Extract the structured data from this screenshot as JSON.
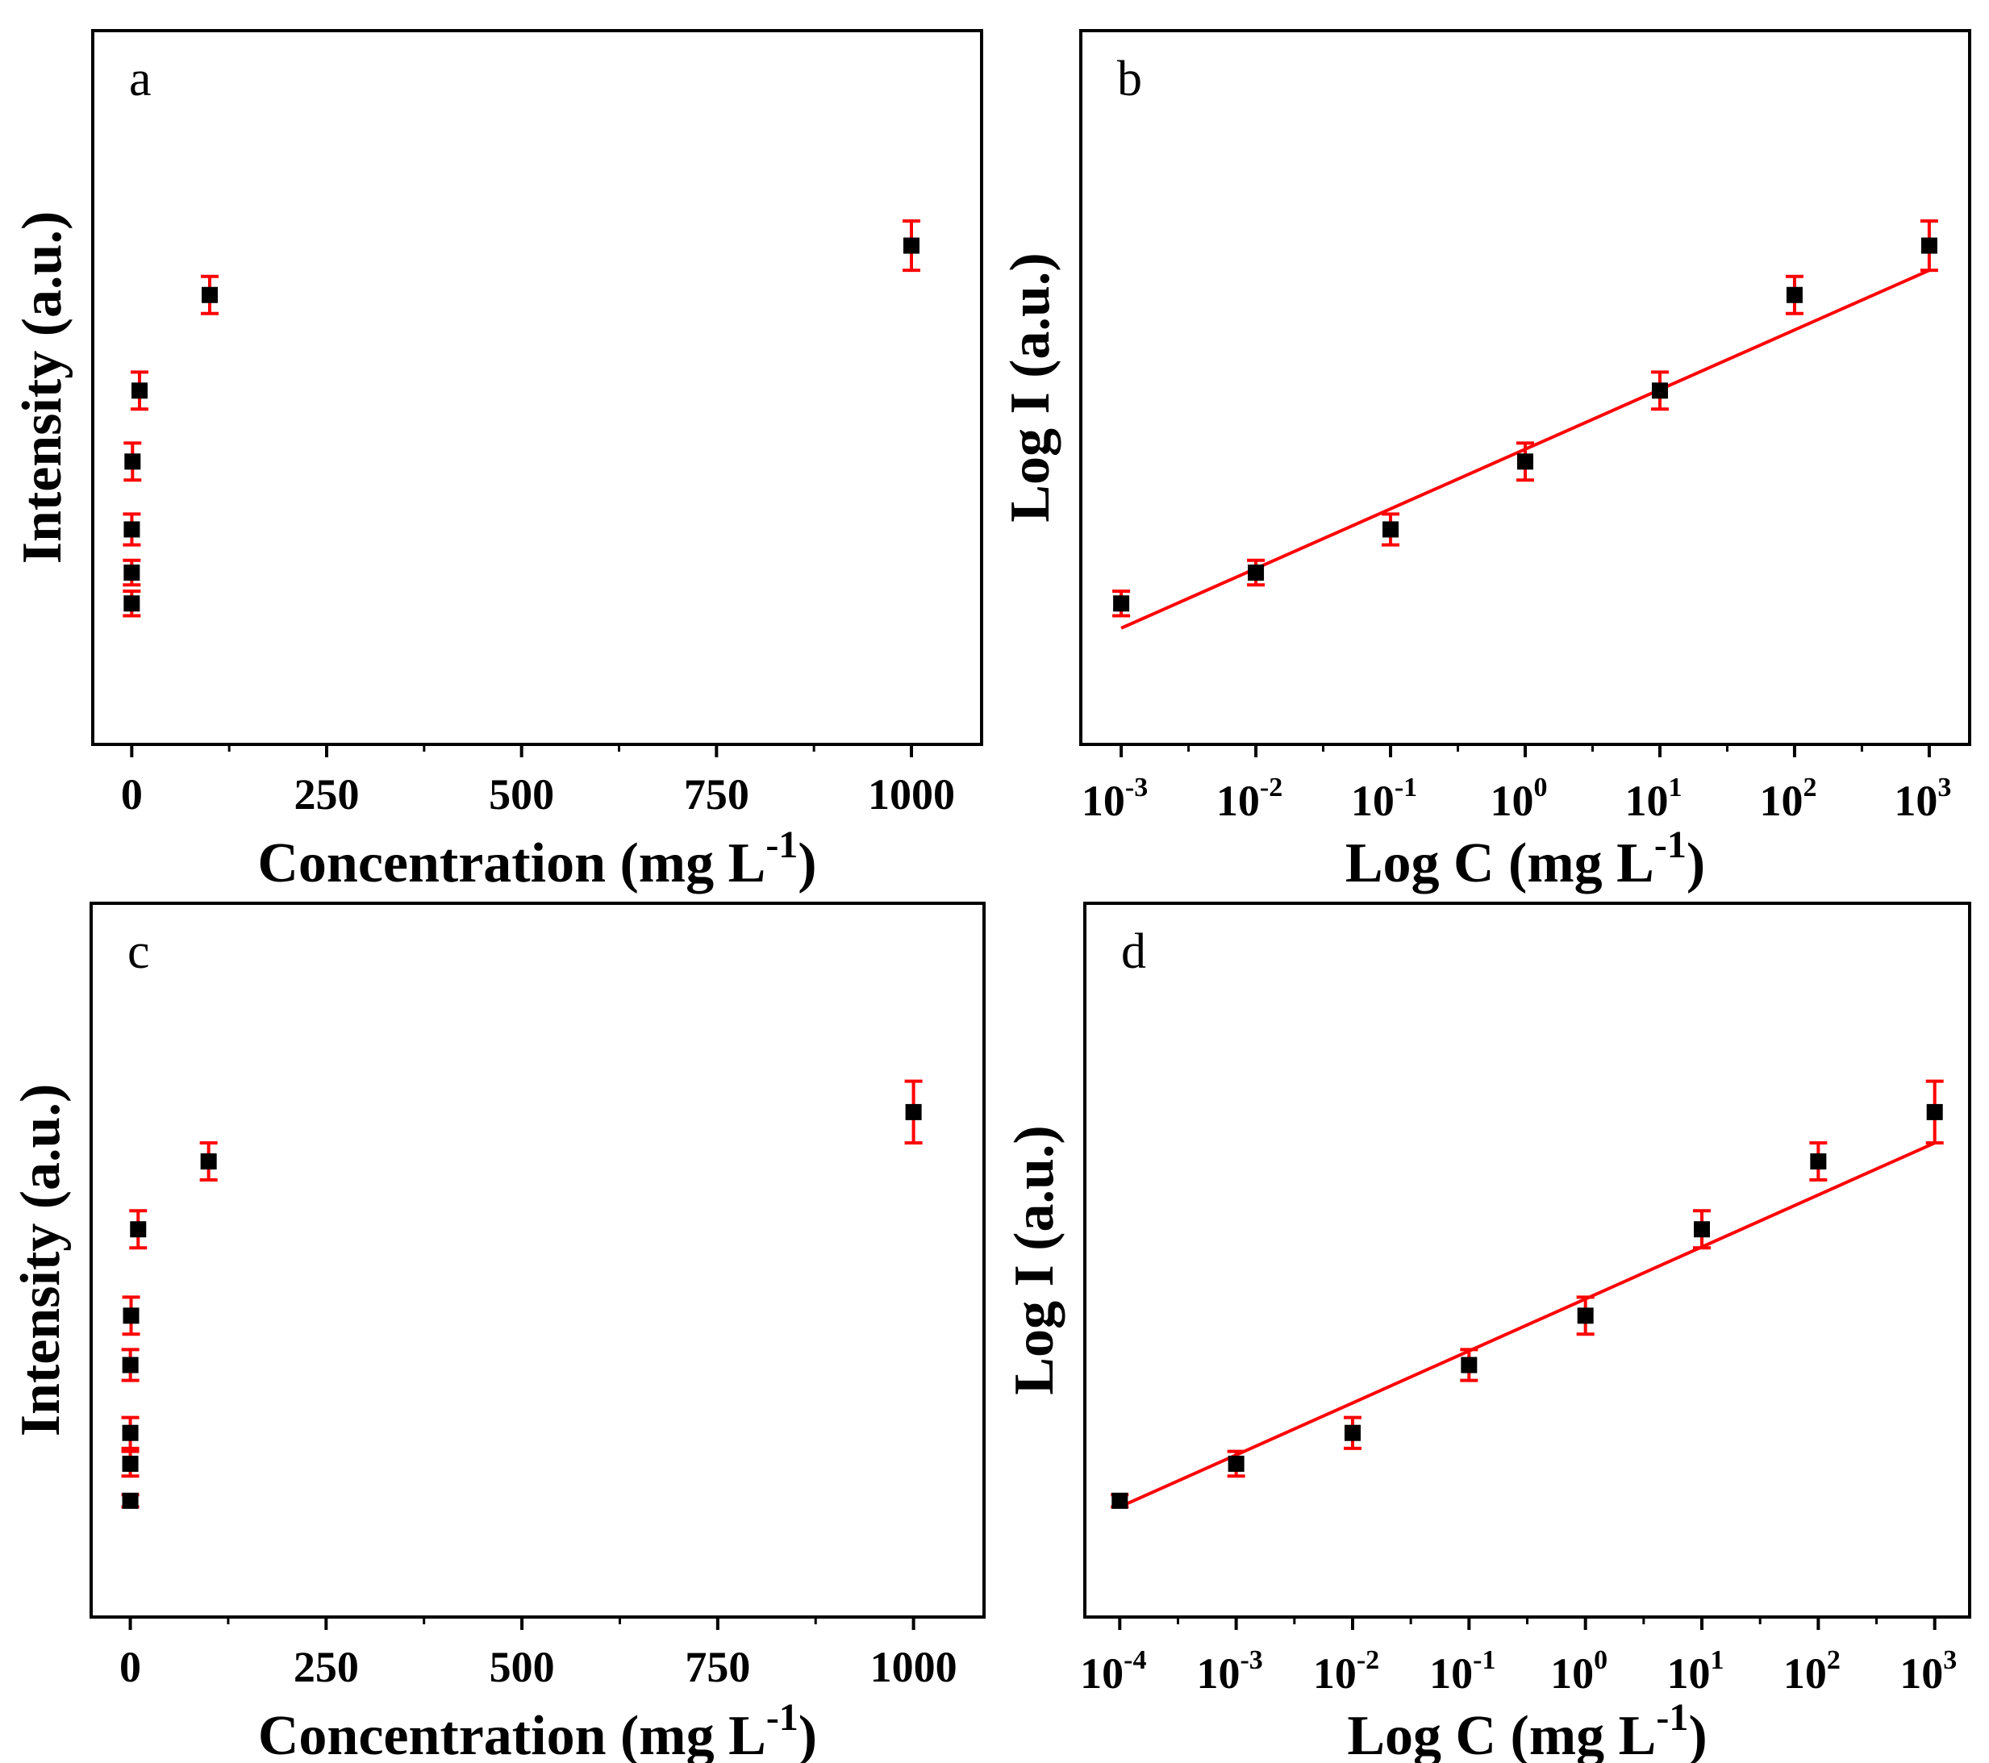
{
  "colors": {
    "point": "#000000",
    "error": "#ff0000",
    "fit": "#ff0000",
    "frame": "#000000"
  },
  "chart_data": [
    {
      "id": "a",
      "panel_label": "a",
      "type": "scatter",
      "scale": "linear",
      "xlabel": "Concentration (mg L",
      "xlabel_sup": "-1",
      "xlabel_close": ")",
      "ylabel": "Intensity (a.u.)",
      "xlim": [
        -50,
        1090
      ],
      "ylim": [
        0,
        100
      ],
      "xticks": [
        0,
        250,
        500,
        750,
        1000
      ],
      "xtick_labels": [
        "0",
        "250",
        "500",
        "750",
        "1000"
      ],
      "fit": false,
      "points": [
        {
          "x": 0.001,
          "y": 15,
          "err": 2
        },
        {
          "x": 0.01,
          "y": 20,
          "err": 2
        },
        {
          "x": 0.1,
          "y": 27,
          "err": 2.5
        },
        {
          "x": 1,
          "y": 38,
          "err": 3
        },
        {
          "x": 10,
          "y": 49.5,
          "err": 3
        },
        {
          "x": 100,
          "y": 65,
          "err": 3
        },
        {
          "x": 1000,
          "y": 73,
          "err": 4
        }
      ]
    },
    {
      "id": "b",
      "panel_label": "b",
      "type": "scatter",
      "scale": "log",
      "xlabel": "Log C (mg L",
      "xlabel_sup": "-1",
      "xlabel_close": ")",
      "ylabel": "Log I (a.u.)",
      "xlim": [
        -3.3,
        3.3
      ],
      "ylim": [
        0,
        100
      ],
      "xticks": [
        -3,
        -2,
        -1,
        0,
        1,
        2,
        3
      ],
      "xtick_base": "10",
      "xtick_exps": [
        "-3",
        "-2",
        "-1",
        "0",
        "1",
        "2",
        "3"
      ],
      "fit": true,
      "fit_line": {
        "x1": -3,
        "y1": 11,
        "x2": 3,
        "y2": 69
      },
      "points": [
        {
          "x": -3,
          "y": 15,
          "err": 2
        },
        {
          "x": -2,
          "y": 20,
          "err": 2
        },
        {
          "x": -1,
          "y": 27,
          "err": 2.5
        },
        {
          "x": 0,
          "y": 38,
          "err": 3
        },
        {
          "x": 1,
          "y": 49.5,
          "err": 3
        },
        {
          "x": 2,
          "y": 65,
          "err": 3
        },
        {
          "x": 3,
          "y": 73,
          "err": 4
        }
      ]
    },
    {
      "id": "c",
      "panel_label": "c",
      "type": "scatter",
      "scale": "linear",
      "xlabel": "Concentration (mg L",
      "xlabel_sup": "-1",
      "xlabel_close": ")",
      "ylabel": "Intensity (a.u.)",
      "xlim": [
        -50,
        1090
      ],
      "ylim": [
        0,
        100
      ],
      "xticks": [
        0,
        250,
        500,
        750,
        1000
      ],
      "xtick_labels": [
        "0",
        "250",
        "500",
        "750",
        "1000"
      ],
      "fit": false,
      "points": [
        {
          "x": 0.0001,
          "y": 11,
          "err": 1
        },
        {
          "x": 0.001,
          "y": 17,
          "err": 2
        },
        {
          "x": 0.01,
          "y": 22,
          "err": 2.5
        },
        {
          "x": 0.1,
          "y": 33,
          "err": 2.5
        },
        {
          "x": 1,
          "y": 41,
          "err": 3
        },
        {
          "x": 10,
          "y": 55,
          "err": 3
        },
        {
          "x": 100,
          "y": 66,
          "err": 3
        },
        {
          "x": 1000,
          "y": 74,
          "err": 5
        }
      ]
    },
    {
      "id": "d",
      "panel_label": "d",
      "type": "scatter",
      "scale": "log",
      "xlabel": "Log C (mg L",
      "xlabel_sup": "-1",
      "xlabel_close": ")",
      "ylabel": "Log I (a.u.)",
      "xlim": [
        -4.3,
        3.3
      ],
      "ylim": [
        0,
        100
      ],
      "xticks": [
        -4,
        -3,
        -2,
        -1,
        0,
        1,
        2,
        3
      ],
      "xtick_base": "10",
      "xtick_exps": [
        "-4",
        "-3",
        "-2",
        "-1",
        "0",
        "1",
        "2",
        "3"
      ],
      "fit": true,
      "fit_line": {
        "x1": -4,
        "y1": 10,
        "x2": 3,
        "y2": 69
      },
      "points": [
        {
          "x": -4,
          "y": 11,
          "err": 1
        },
        {
          "x": -3,
          "y": 17,
          "err": 2
        },
        {
          "x": -2,
          "y": 22,
          "err": 2.5
        },
        {
          "x": -1,
          "y": 33,
          "err": 2.5
        },
        {
          "x": 0,
          "y": 41,
          "err": 3
        },
        {
          "x": 1,
          "y": 55,
          "err": 3
        },
        {
          "x": 2,
          "y": 66,
          "err": 3
        },
        {
          "x": 3,
          "y": 74,
          "err": 5
        }
      ]
    }
  ]
}
